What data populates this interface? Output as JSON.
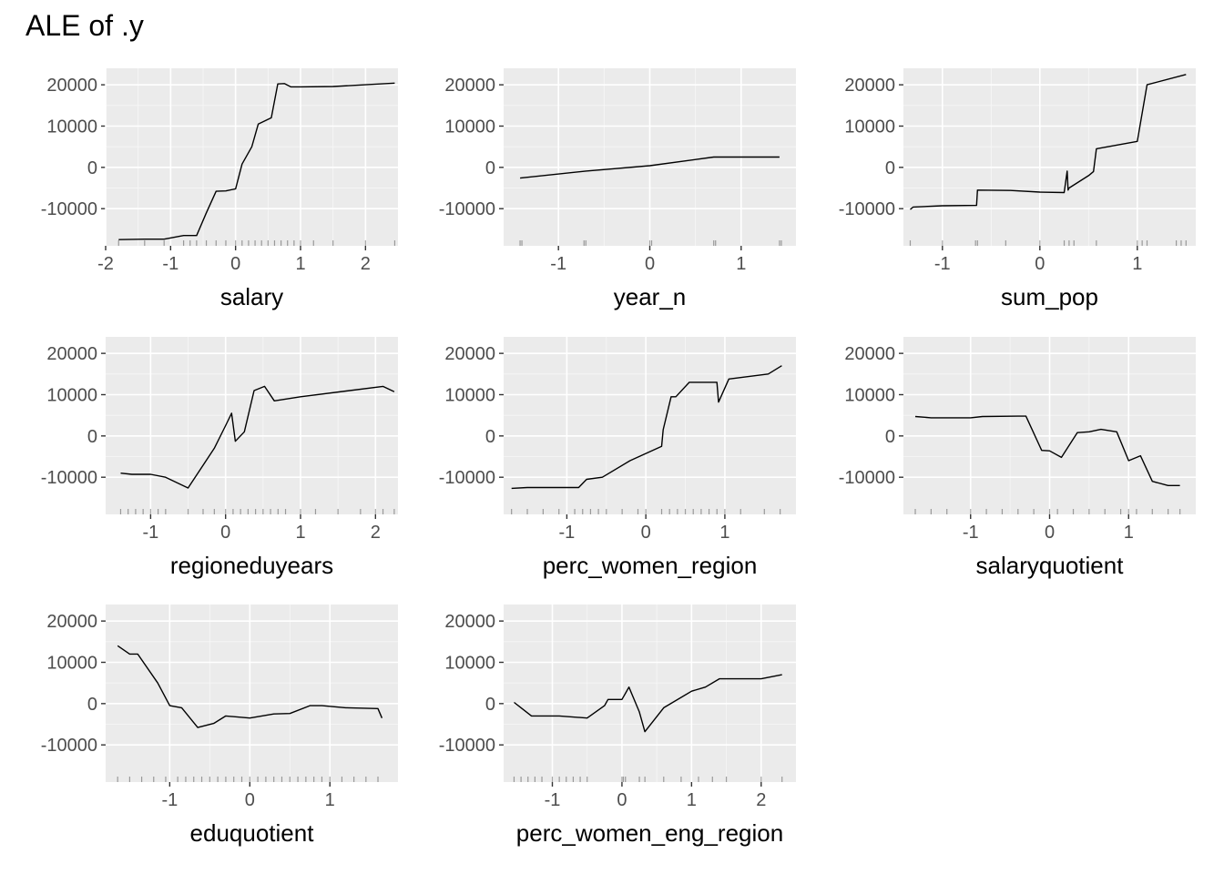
{
  "title": "ALE of .y",
  "chart_data": [
    {
      "type": "line",
      "xlabel": "salary",
      "ylabel": "",
      "xlim": [
        -2.0,
        2.5
      ],
      "ylim": [
        -19000,
        24000
      ],
      "xticks": [
        -2,
        -1,
        0,
        1,
        2
      ],
      "yticks": [
        -10000,
        0,
        10000,
        20000
      ],
      "ytick_labels": [
        "-10000",
        "0",
        "10000",
        "20000"
      ],
      "x": [
        -1.8,
        -1.4,
        -1.1,
        -0.8,
        -0.6,
        -0.45,
        -0.3,
        -0.15,
        0.0,
        0.1,
        0.25,
        0.35,
        0.55,
        0.65,
        0.75,
        0.85,
        1.0,
        1.5,
        2.0,
        2.45
      ],
      "y": [
        -17500,
        -17400,
        -17400,
        -16500,
        -16500,
        -11000,
        -5800,
        -5700,
        -5200,
        800,
        5000,
        10500,
        12000,
        20200,
        20300,
        19500,
        19500,
        19600,
        20000,
        20400
      ],
      "rug": [
        -1.8,
        -1.4,
        -1.1,
        -0.8,
        -0.7,
        -0.6,
        -0.45,
        -0.3,
        -0.15,
        0.0,
        0.1,
        0.2,
        0.3,
        0.4,
        0.5,
        0.6,
        0.7,
        0.8,
        0.9,
        1.0,
        1.2,
        1.5,
        2.0,
        2.45
      ]
    },
    {
      "type": "line",
      "xlabel": "year_n",
      "ylabel": "",
      "xlim": [
        -1.6,
        1.6
      ],
      "ylim": [
        -19000,
        24000
      ],
      "xticks": [
        -1,
        0,
        1
      ],
      "yticks": [
        -10000,
        0,
        10000,
        20000
      ],
      "ytick_labels": [
        "-10000",
        "0",
        "10000",
        "20000"
      ],
      "x": [
        -1.42,
        -0.7,
        0.0,
        0.7,
        1.42
      ],
      "y": [
        -2600,
        -900,
        400,
        2500,
        2500
      ],
      "rug": [
        -1.42,
        -1.4,
        -0.72,
        -0.7,
        0.0,
        0.02,
        0.7,
        0.72,
        1.42,
        1.44
      ]
    },
    {
      "type": "line",
      "xlabel": "sum_pop",
      "ylabel": "",
      "xlim": [
        -1.4,
        1.6
      ],
      "ylim": [
        -19000,
        24000
      ],
      "xticks": [
        -1,
        0,
        1
      ],
      "yticks": [
        -10000,
        0,
        10000,
        20000
      ],
      "ytick_labels": [
        "-10000",
        "0",
        "10000",
        "20000"
      ],
      "x": [
        -1.33,
        -1.3,
        -1.0,
        -0.65,
        -0.64,
        -0.3,
        0.0,
        0.25,
        0.28,
        0.29,
        0.3,
        0.5,
        0.55,
        0.58,
        1.0,
        1.1,
        1.5
      ],
      "y": [
        -10200,
        -9600,
        -9300,
        -9200,
        -5500,
        -5600,
        -6000,
        -6100,
        -900,
        -5500,
        -5000,
        -2000,
        -1000,
        4500,
        6300,
        20000,
        22500
      ],
      "rug": [
        -1.33,
        -1.0,
        -0.66,
        -0.64,
        -0.35,
        0.0,
        0.25,
        0.3,
        0.35,
        0.58,
        1.0,
        1.05,
        1.1,
        1.4,
        1.45,
        1.5
      ]
    },
    {
      "type": "line",
      "xlabel": "regioneduyears",
      "ylabel": "",
      "xlim": [
        -1.6,
        2.3
      ],
      "ylim": [
        -19000,
        24000
      ],
      "xticks": [
        -1,
        0,
        1,
        2
      ],
      "yticks": [
        -10000,
        0,
        10000,
        20000
      ],
      "ytick_labels": [
        "-10000",
        "0",
        "10000",
        "20000"
      ],
      "x": [
        -1.4,
        -1.25,
        -1.0,
        -0.8,
        -0.5,
        -0.15,
        0.0,
        0.08,
        0.13,
        0.25,
        0.38,
        0.52,
        0.65,
        1.0,
        2.1,
        2.25
      ],
      "y": [
        -9000,
        -9300,
        -9300,
        -10000,
        -12600,
        -3000,
        2500,
        5500,
        -1300,
        1000,
        11000,
        12000,
        8500,
        9500,
        12000,
        10700
      ],
      "rug": [
        -1.4,
        -1.3,
        -1.2,
        -1.1,
        -1.0,
        -0.9,
        -0.8,
        -0.5,
        -0.3,
        -0.15,
        0.0,
        0.1,
        0.2,
        0.3,
        0.4,
        0.5,
        0.6,
        0.7,
        0.8,
        1.0,
        1.2,
        1.5,
        1.8,
        2.0,
        2.1,
        2.25
      ]
    },
    {
      "type": "line",
      "xlabel": "perc_women_region",
      "ylabel": "",
      "xlim": [
        -1.8,
        1.9
      ],
      "ylim": [
        -19000,
        24000
      ],
      "xticks": [
        -1,
        0,
        1
      ],
      "yticks": [
        -10000,
        0,
        10000,
        20000
      ],
      "ytick_labels": [
        "-10000",
        "0",
        "10000",
        "20000"
      ],
      "x": [
        -1.7,
        -1.5,
        -1.0,
        -0.85,
        -0.75,
        -0.55,
        -0.2,
        0.2,
        0.22,
        0.32,
        0.38,
        0.55,
        0.9,
        0.92,
        1.05,
        1.55,
        1.72
      ],
      "y": [
        -12700,
        -12500,
        -12500,
        -12500,
        -10500,
        -10000,
        -6000,
        -2500,
        1500,
        9500,
        9500,
        13000,
        13000,
        8200,
        13800,
        15000,
        17000
      ],
      "rug": [
        -1.7,
        -1.5,
        -1.3,
        -1.1,
        -0.9,
        -0.8,
        -0.7,
        -0.6,
        -0.5,
        -0.3,
        -0.1,
        0.0,
        0.2,
        0.3,
        0.4,
        0.5,
        0.6,
        0.7,
        0.8,
        0.9,
        1.0,
        1.2,
        1.5,
        1.7
      ]
    },
    {
      "type": "line",
      "xlabel": "salaryquotient",
      "ylabel": "",
      "xlim": [
        -1.85,
        1.85
      ],
      "ylim": [
        -19000,
        24000
      ],
      "xticks": [
        -1,
        0,
        1
      ],
      "yticks": [
        -10000,
        0,
        10000,
        20000
      ],
      "ytick_labels": [
        "-10000",
        "0",
        "10000",
        "20000"
      ],
      "x": [
        -1.7,
        -1.5,
        -1.0,
        -0.85,
        -0.4,
        -0.3,
        -0.1,
        0.0,
        0.15,
        0.35,
        0.5,
        0.65,
        0.85,
        1.0,
        1.15,
        1.3,
        1.5,
        1.65
      ],
      "y": [
        4700,
        4400,
        4400,
        4700,
        4800,
        4800,
        -3500,
        -3600,
        -5200,
        800,
        1000,
        1600,
        1000,
        -6000,
        -4800,
        -11000,
        -12000,
        -12000
      ],
      "rug": [
        -1.7,
        -1.5,
        -1.3,
        -1.0,
        -0.8,
        -0.6,
        -0.4,
        -0.2,
        0.0,
        0.1,
        0.3,
        0.5,
        0.7,
        0.9,
        1.0,
        1.1,
        1.3,
        1.5,
        1.65
      ]
    },
    {
      "type": "line",
      "xlabel": "eduquotient",
      "ylabel": "",
      "xlim": [
        -1.8,
        1.85
      ],
      "ylim": [
        -19000,
        24000
      ],
      "xticks": [
        -1,
        0,
        1
      ],
      "yticks": [
        -10000,
        0,
        10000,
        20000
      ],
      "ytick_labels": [
        "-10000",
        "0",
        "10000",
        "20000"
      ],
      "x": [
        -1.65,
        -1.5,
        -1.4,
        -1.15,
        -1.0,
        -0.85,
        -0.65,
        -0.45,
        -0.3,
        0.0,
        0.3,
        0.5,
        0.75,
        0.9,
        1.2,
        1.6,
        1.65
      ],
      "y": [
        14000,
        12000,
        12000,
        5000,
        -500,
        -1000,
        -5800,
        -4800,
        -3000,
        -3500,
        -2500,
        -2400,
        -500,
        -500,
        -1000,
        -1200,
        -3500
      ],
      "rug": [
        -1.65,
        -1.5,
        -1.35,
        -1.2,
        -1.05,
        -0.9,
        -0.8,
        -0.7,
        -0.6,
        -0.5,
        -0.4,
        -0.3,
        -0.2,
        -0.1,
        0.0,
        0.1,
        0.2,
        0.3,
        0.4,
        0.5,
        0.6,
        0.7,
        0.8,
        0.9,
        1.0,
        1.15,
        1.3,
        1.45,
        1.6
      ]
    },
    {
      "type": "line",
      "xlabel": "perc_women_eng_region",
      "ylabel": "",
      "xlim": [
        -1.7,
        2.5
      ],
      "ylim": [
        -19000,
        24000
      ],
      "xticks": [
        -1,
        0,
        1,
        2
      ],
      "yticks": [
        -10000,
        0,
        10000,
        20000
      ],
      "ytick_labels": [
        "-10000",
        "0",
        "10000",
        "20000"
      ],
      "x": [
        -1.55,
        -1.45,
        -1.3,
        -0.9,
        -0.5,
        -0.25,
        -0.2,
        0.0,
        0.05,
        0.1,
        0.25,
        0.33,
        0.6,
        1.0,
        1.2,
        1.4,
        2.0,
        2.3
      ],
      "y": [
        300,
        -1000,
        -3000,
        -3000,
        -3500,
        -500,
        1000,
        1000,
        2500,
        4000,
        -2000,
        -6800,
        -1000,
        3000,
        4000,
        6000,
        6000,
        7000
      ],
      "rug": [
        -1.55,
        -1.45,
        -1.35,
        -1.25,
        -1.15,
        -1.0,
        -0.9,
        -0.8,
        -0.7,
        -0.6,
        -0.5,
        0.0,
        0.02,
        0.05,
        0.25,
        0.33,
        0.6,
        0.85,
        1.1,
        1.3,
        1.5,
        2.0,
        2.3
      ]
    }
  ]
}
